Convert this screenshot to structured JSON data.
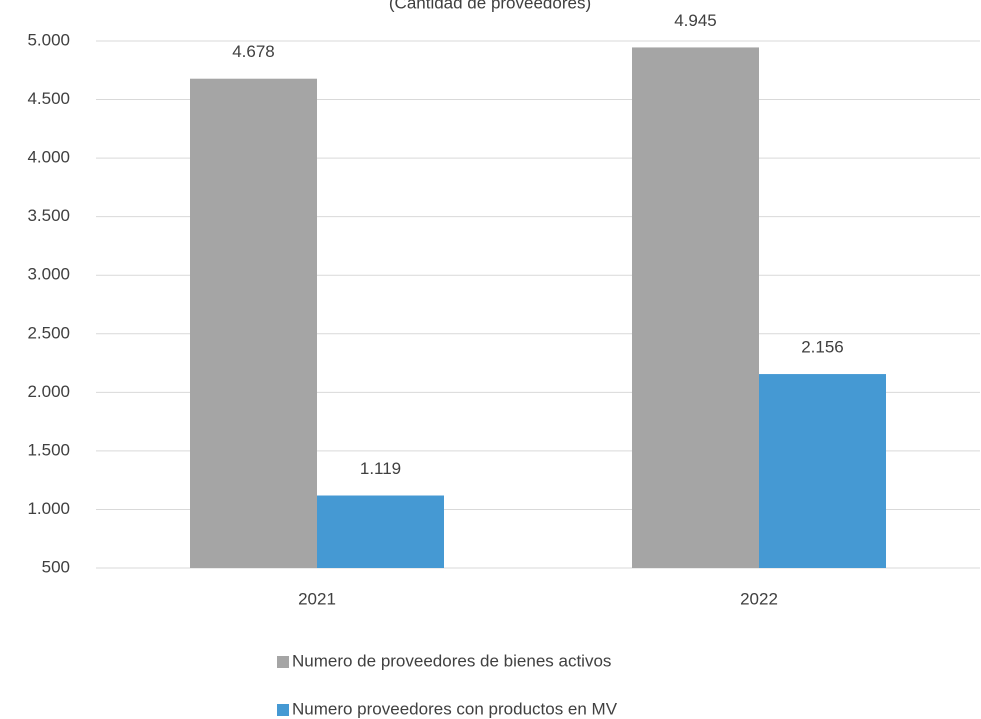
{
  "chart_data": {
    "type": "bar",
    "subtitle": "(Cantidad de proveedores)",
    "categories": [
      "2021",
      "2022"
    ],
    "series": [
      {
        "name": "Numero de proveedores de bienes activos",
        "color": "#a5a5a5",
        "values": [
          4678,
          4945
        ],
        "value_labels": [
          "4.678",
          "4.945"
        ]
      },
      {
        "name": "Numero proveedores con productos en MV",
        "color": "#4599d3",
        "values": [
          1119,
          2156
        ],
        "value_labels": [
          "1.119",
          "2.156"
        ]
      }
    ],
    "ylim": [
      500,
      5000
    ],
    "yticks": [
      500,
      {
        "value": 1000,
        "label": "1.000"
      },
      {
        "value": 1500,
        "label": "1.500"
      },
      {
        "value": 2000,
        "label": "2.000"
      },
      {
        "value": 2500,
        "label": "2.500"
      },
      {
        "value": 3000,
        "label": "3.000"
      },
      {
        "value": 3500,
        "label": "3.500"
      },
      {
        "value": 4000,
        "label": "4.000"
      },
      {
        "value": 4500,
        "label": "4.500"
      },
      {
        "value": 5000,
        "label": "5.000"
      }
    ],
    "grid": true,
    "legend": "bottom"
  }
}
